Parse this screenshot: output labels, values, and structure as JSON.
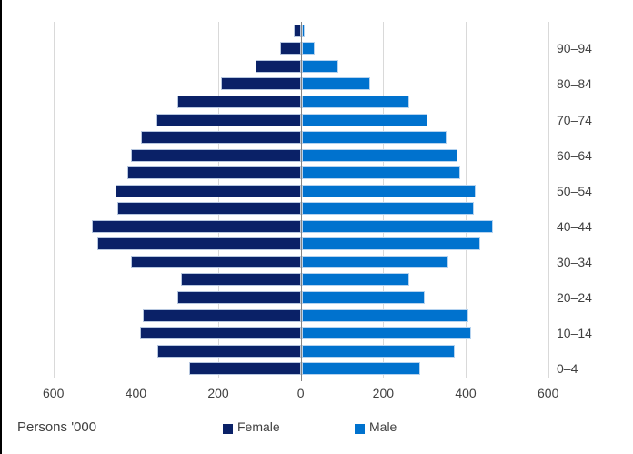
{
  "chart_data": {
    "type": "bar",
    "subtype": "population-pyramid",
    "title": "",
    "xlabel": "Persons '000",
    "ylabel": "Age group (years)",
    "orientation": "horizontal",
    "rows_order": "oldest-first",
    "categories": [
      "95–99",
      "90–94",
      "85–89",
      "80–84",
      "75–79",
      "70–74",
      "65–69",
      "60–64",
      "55–59",
      "50–54",
      "45–49",
      "40–44",
      "35–39",
      "30–34",
      "25–29",
      "20–24",
      "15–19",
      "10–14",
      "5–9",
      "0–4"
    ],
    "series": [
      {
        "name": "Female",
        "side": "left",
        "color": "#0a2167",
        "values": [
          17,
          49,
          110,
          193,
          299,
          349,
          388,
          411,
          421,
          450,
          444,
          507,
          493,
          412,
          291,
          299,
          383,
          390,
          348,
          271
        ]
      },
      {
        "name": "Male",
        "side": "right",
        "color": "#0072ce",
        "values": [
          8,
          32,
          88,
          166,
          260,
          306,
          351,
          378,
          385,
          421,
          418,
          465,
          432,
          355,
          260,
          298,
          404,
          412,
          372,
          288
        ]
      }
    ],
    "xlim": [
      -600,
      600
    ],
    "x_tick_values": [
      600,
      400,
      200,
      0,
      200,
      400,
      600
    ],
    "grid": true,
    "legend_position": "bottom"
  },
  "axis": {
    "x_tick_labels": [
      "600",
      "400",
      "200",
      "0",
      "200",
      "400",
      "600"
    ],
    "unit_label": "Persons '000",
    "visible_age_labels": [
      "90–94",
      "80–84",
      "70–74",
      "60–64",
      "50–54",
      "40–44",
      "30–34",
      "20–24",
      "10–14",
      "0–4"
    ]
  },
  "legend": {
    "items": [
      {
        "label": "Female",
        "color": "#0a2167"
      },
      {
        "label": "Male",
        "color": "#0072ce"
      }
    ]
  },
  "colors": {
    "female_bar": "#0a2167",
    "male_bar": "#0072ce",
    "gridline": "#d9d9d9",
    "center_axis": "#848484",
    "text": "#404040",
    "background": "#ffffff",
    "screen_edge": "#000000"
  }
}
